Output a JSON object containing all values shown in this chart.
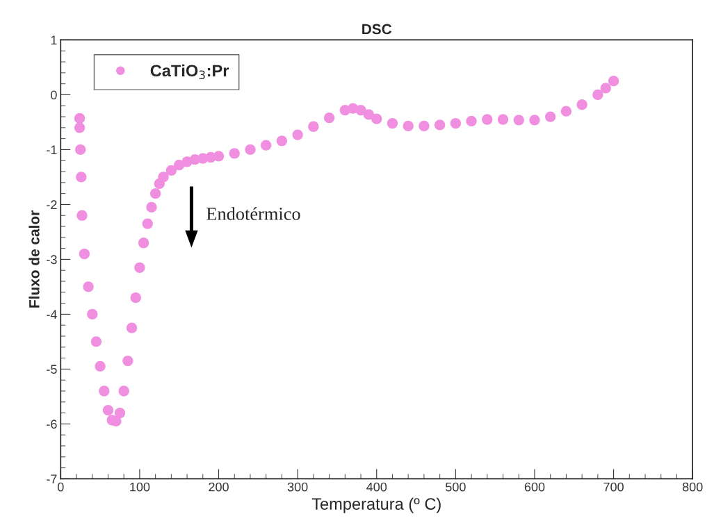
{
  "chart_data": {
    "type": "scatter",
    "title": "DSC",
    "xlabel": "Temperatura (º C)",
    "ylabel": "Fluxo de calor",
    "xlim": [
      0,
      800
    ],
    "xticks": [
      0,
      100,
      200,
      300,
      400,
      500,
      600,
      700,
      800
    ],
    "ylim": [
      -7,
      1
    ],
    "yticks": [
      -7,
      -6,
      -5,
      -4,
      -3,
      -2,
      -1,
      0,
      1
    ],
    "grid": false,
    "legend": "top left",
    "marker": "circle",
    "annotations": [
      "Endotérmico"
    ],
    "series": [
      {
        "name": "CaTiO$_{3}$:Pr",
        "color": "#f08ee0",
        "x": [
          24,
          24,
          25,
          26,
          27,
          30,
          35,
          40,
          45,
          50,
          55,
          60,
          65,
          70,
          75,
          80,
          85,
          90,
          95,
          100,
          105,
          110,
          115,
          120,
          125,
          130,
          140,
          150,
          160,
          170,
          180,
          190,
          200,
          220,
          240,
          260,
          280,
          300,
          320,
          340,
          360,
          370,
          380,
          390,
          400,
          420,
          440,
          460,
          480,
          500,
          520,
          540,
          560,
          580,
          600,
          620,
          640,
          660,
          680,
          690,
          700
        ],
        "values": [
          -0.43,
          -0.6,
          -1.0,
          -1.5,
          -2.2,
          -2.9,
          -3.5,
          -4.0,
          -4.5,
          -4.95,
          -5.4,
          -5.75,
          -5.93,
          -5.95,
          -5.8,
          -5.4,
          -4.85,
          -4.25,
          -3.7,
          -3.15,
          -2.7,
          -2.35,
          -2.05,
          -1.8,
          -1.62,
          -1.5,
          -1.38,
          -1.28,
          -1.22,
          -1.18,
          -1.16,
          -1.14,
          -1.12,
          -1.07,
          -1.0,
          -0.92,
          -0.84,
          -0.73,
          -0.58,
          -0.42,
          -0.28,
          -0.25,
          -0.28,
          -0.36,
          -0.44,
          -0.52,
          -0.57,
          -0.57,
          -0.55,
          -0.52,
          -0.48,
          -0.45,
          -0.45,
          -0.46,
          -0.46,
          -0.4,
          -0.3,
          -0.18,
          0.0,
          0.12,
          0.25
        ]
      }
    ]
  }
}
